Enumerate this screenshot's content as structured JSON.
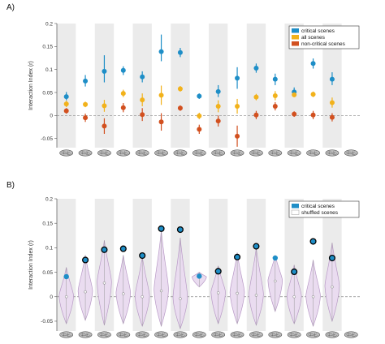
{
  "chart_data": [
    {
      "panel_label": "A)",
      "type": "scatter",
      "ylabel": "Interaction Index (r)",
      "ylim": [
        -0.07,
        0.2
      ],
      "yticks": [
        -0.05,
        0,
        0.05,
        0.1,
        0.15,
        0.2
      ],
      "yticklabels": [
        "-0.05",
        "0",
        "0.05",
        "0.1",
        "0.15",
        "0.2"
      ],
      "grid": false,
      "legend_position": "top-right",
      "categories": [
        "1",
        "2",
        "3",
        "4",
        "5",
        "6",
        "7",
        "8",
        "9",
        "10",
        "11",
        "12",
        "13",
        "14",
        "15",
        "16"
      ],
      "series": [
        {
          "name": "critical scenes",
          "color": "#1E8EC7",
          "values": [
            0.041,
            0.075,
            0.096,
            0.098,
            0.084,
            0.139,
            0.137,
            0.042,
            0.052,
            0.081,
            0.103,
            0.079,
            0.051,
            0.113,
            0.079,
            0.0
          ],
          "err_low": [
            0.033,
            0.063,
            0.072,
            0.088,
            0.072,
            0.118,
            0.127,
            0.036,
            0.04,
            0.058,
            0.093,
            0.066,
            0.041,
            0.102,
            0.066,
            0.0
          ],
          "err_high": [
            0.051,
            0.088,
            0.131,
            0.107,
            0.096,
            0.176,
            0.147,
            0.048,
            0.066,
            0.105,
            0.113,
            0.091,
            0.061,
            0.124,
            0.094,
            0.0
          ]
        },
        {
          "name": "all scenes",
          "color": "#F2B21B",
          "values": [
            0.025,
            0.024,
            0.021,
            0.048,
            0.034,
            0.044,
            0.058,
            -0.001,
            0.02,
            0.02,
            0.04,
            0.043,
            0.045,
            0.046,
            0.028,
            0.0
          ],
          "err_low": [
            0.018,
            0.018,
            0.008,
            0.04,
            0.02,
            0.023,
            0.052,
            -0.008,
            0.007,
            0.004,
            0.033,
            0.033,
            0.04,
            0.04,
            0.017,
            0.0
          ],
          "err_high": [
            0.032,
            0.03,
            0.034,
            0.056,
            0.048,
            0.065,
            0.064,
            0.006,
            0.033,
            0.036,
            0.047,
            0.053,
            0.05,
            0.052,
            0.039,
            0.0
          ]
        },
        {
          "name": "non-critical scenes",
          "color": "#D2501F",
          "values": [
            0.01,
            -0.005,
            -0.023,
            0.017,
            0.002,
            -0.014,
            0.016,
            -0.03,
            -0.012,
            -0.045,
            0.001,
            0.02,
            0.003,
            0.001,
            -0.004,
            0.0
          ],
          "err_low": [
            0.004,
            -0.014,
            -0.04,
            0.007,
            -0.012,
            -0.033,
            0.01,
            -0.04,
            -0.024,
            -0.068,
            -0.008,
            0.011,
            -0.003,
            -0.008,
            -0.013,
            0.0
          ],
          "err_high": [
            0.016,
            0.004,
            -0.006,
            0.027,
            0.016,
            0.005,
            0.022,
            -0.02,
            0.0,
            -0.022,
            0.01,
            0.029,
            0.009,
            0.01,
            0.005,
            0.0
          ]
        }
      ]
    },
    {
      "panel_label": "B)",
      "type": "violin",
      "ylabel": "Interaction Index (r)",
      "ylim": [
        -0.07,
        0.2
      ],
      "yticks": [
        -0.05,
        0,
        0.05,
        0.1,
        0.15,
        0.2
      ],
      "yticklabels": [
        "-0.05",
        "0",
        "0.05",
        "0.1",
        "0.15",
        "0.2"
      ],
      "grid": false,
      "legend_position": "top-right",
      "categories": [
        "1",
        "2",
        "3",
        "4",
        "5",
        "6",
        "7",
        "8",
        "9",
        "10",
        "11",
        "12",
        "13",
        "14",
        "15",
        "16"
      ],
      "series": [
        {
          "name": "critical scenes",
          "color": "#1E8EC7",
          "values": [
            0.041,
            0.075,
            0.096,
            0.098,
            0.084,
            0.139,
            0.137,
            0.042,
            0.052,
            0.081,
            0.103,
            0.079,
            0.051,
            0.113,
            0.079,
            0.0
          ],
          "significant": [
            false,
            true,
            true,
            true,
            true,
            true,
            true,
            false,
            true,
            true,
            true,
            false,
            true,
            true,
            true,
            false
          ]
        },
        {
          "name": "shuffled scenes",
          "color": "#B89AC6",
          "median": [
            0.0,
            0.01,
            0.028,
            0.006,
            0.0,
            0.012,
            -0.004,
            0.04,
            0.008,
            0.007,
            0.003,
            0.032,
            0.0,
            0.0,
            0.02,
            0.0
          ],
          "min": [
            -0.055,
            -0.048,
            -0.058,
            -0.055,
            -0.06,
            -0.06,
            -0.065,
            0.02,
            -0.055,
            -0.055,
            -0.058,
            -0.03,
            -0.055,
            -0.06,
            -0.05,
            0.0
          ],
          "max": [
            0.06,
            0.085,
            0.115,
            0.085,
            0.082,
            0.135,
            0.12,
            0.05,
            0.063,
            0.09,
            0.1,
            0.085,
            0.065,
            0.075,
            0.11,
            0.0
          ]
        }
      ]
    }
  ],
  "icons": [
    "brain-icon"
  ]
}
